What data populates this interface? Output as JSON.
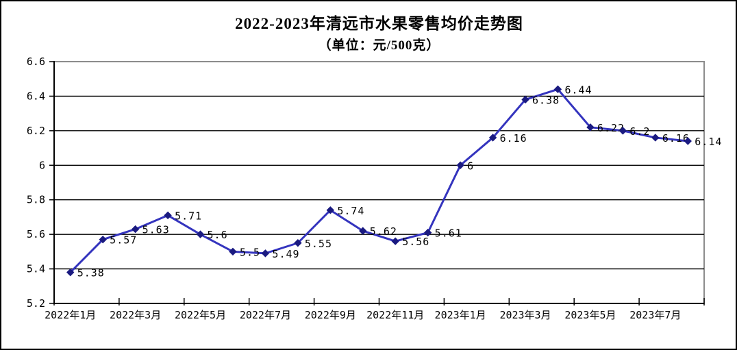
{
  "chart_data": {
    "type": "line",
    "title": "2022-2023年清远市水果零售均价走势图",
    "subtitle": "（单位：元/500克）",
    "legend": "none",
    "gridlines": true,
    "x_axis": {
      "n_points": 20,
      "tick_labels": [
        "2022年1月",
        "2022年3月",
        "2022年5月",
        "2022年7月",
        "2022年9月",
        "2022年11月",
        "2023年1月",
        "2023年3月",
        "2023年5月",
        "2023年7月"
      ]
    },
    "y_axis": {
      "min": 5.2,
      "max": 6.6,
      "step": 0.2,
      "tick_labels": [
        "5.2",
        "5.4",
        "5.6",
        "5.8",
        "6",
        "6.2",
        "6.4",
        "6.6"
      ]
    },
    "series": [
      {
        "marker": "diamond",
        "line_color": "#3434BE",
        "marker_color": "#1A1A80",
        "values": [
          5.38,
          5.57,
          5.63,
          5.71,
          5.6,
          5.5,
          5.49,
          5.55,
          5.74,
          5.62,
          5.56,
          5.61,
          6,
          6.16,
          6.38,
          6.44,
          6.22,
          6.2,
          6.16,
          6.14
        ],
        "point_labels": [
          "5.38",
          "5.57",
          "5.63",
          "5.71",
          "5.6",
          "5.5",
          "5.49",
          "5.55",
          "5.74",
          "5.62",
          "5.56",
          "5.61",
          "6",
          "6.16",
          "6.38",
          "6.44",
          "6.22",
          "6.2",
          "6.16",
          "6.14"
        ]
      }
    ],
    "colors": {
      "background": "#FFFFFF",
      "outer_border": "#000000",
      "plot_border": "#8C8C8C",
      "gridline": "#000000",
      "axis": "#000000",
      "text": "#000000"
    }
  }
}
